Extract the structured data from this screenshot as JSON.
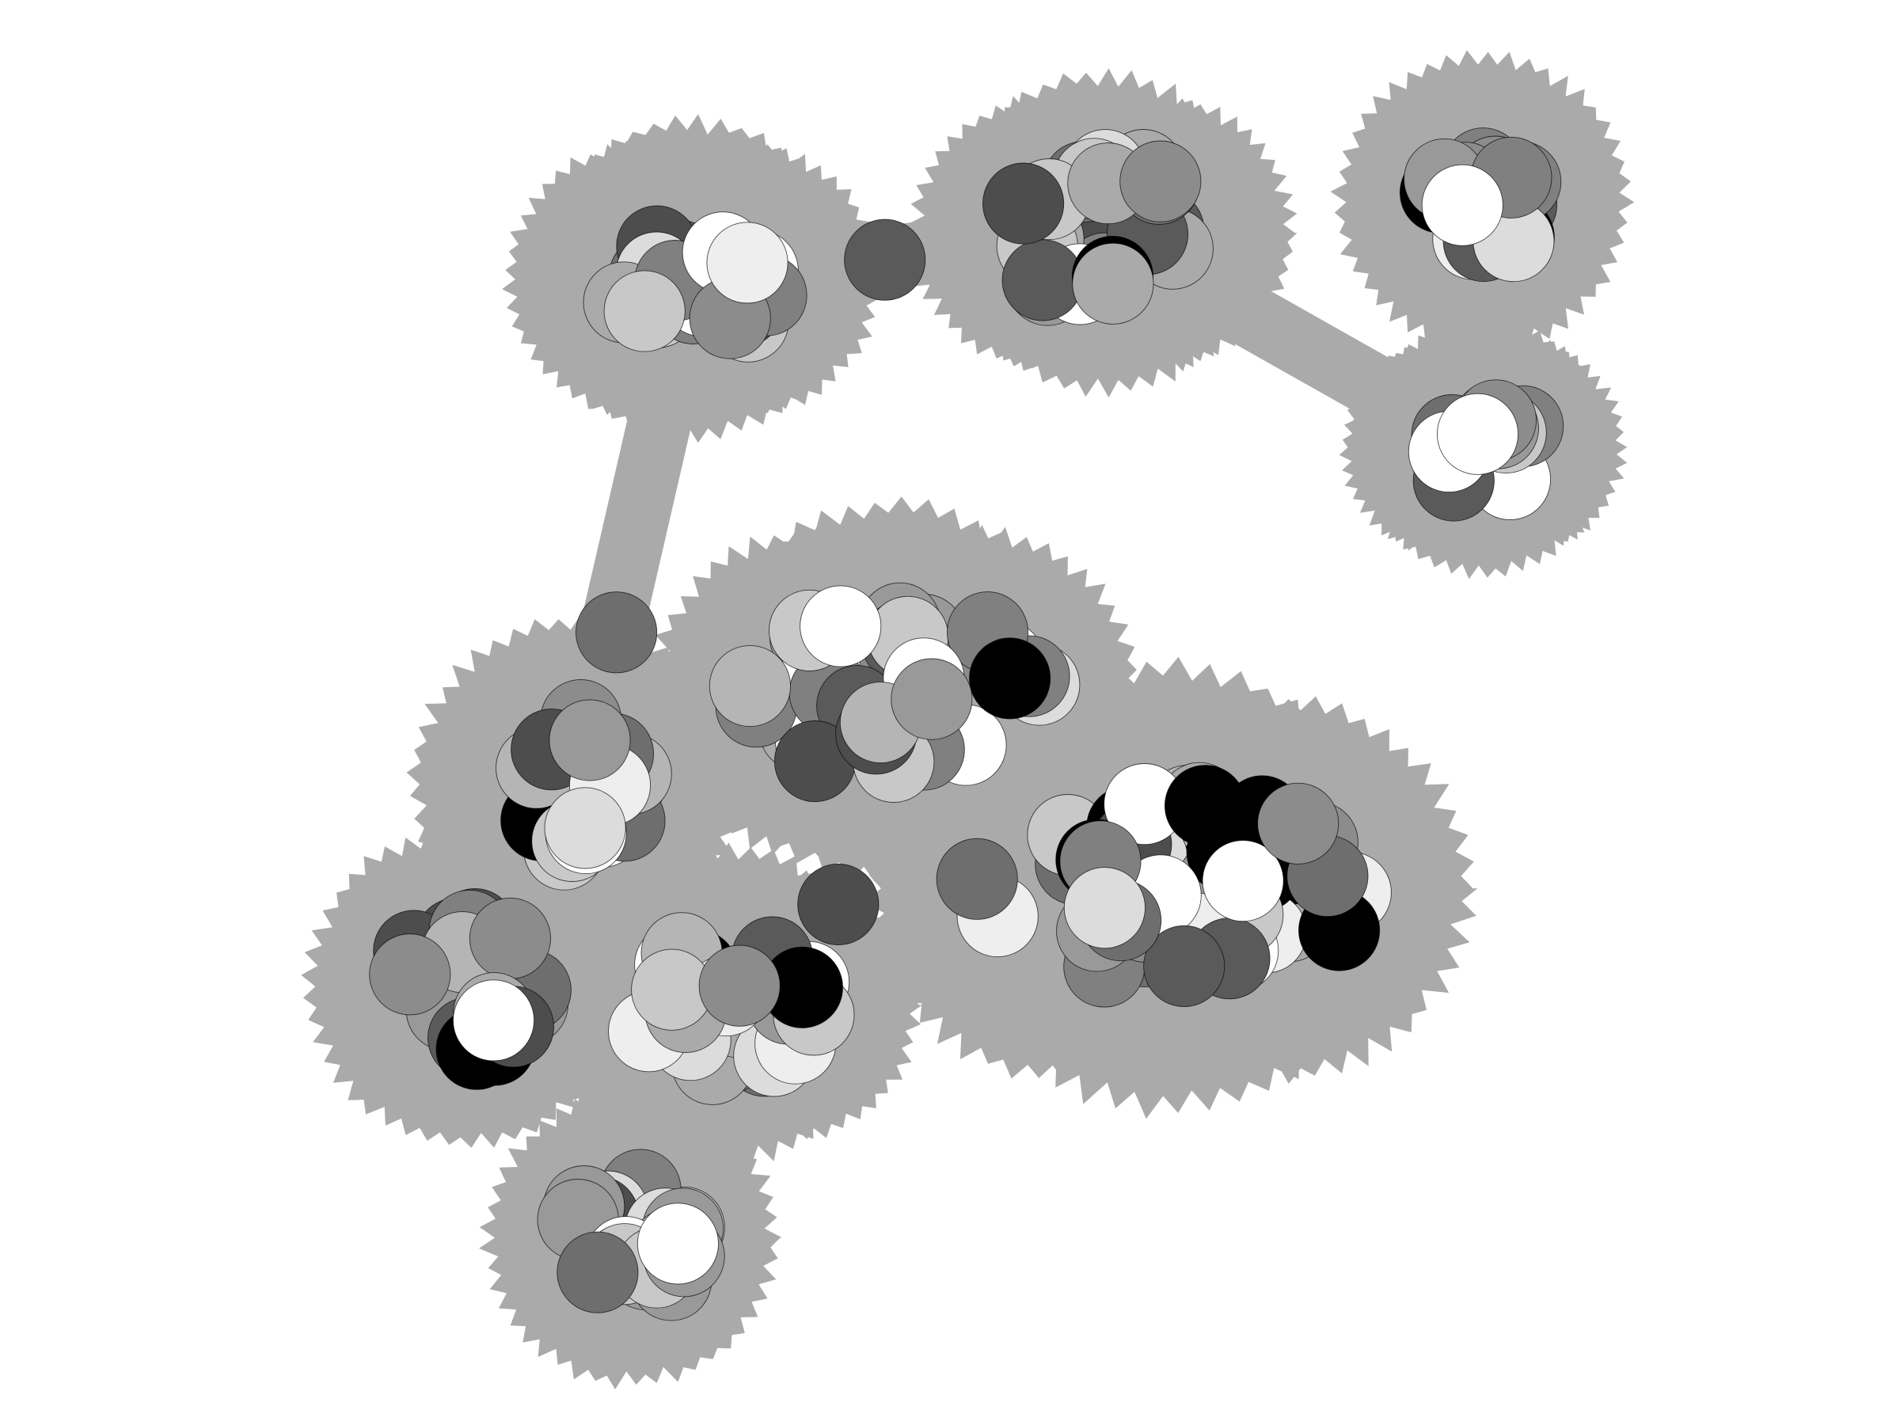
{
  "diagram": {
    "type": "network-bubble-plot",
    "background": "#ffffff",
    "hull_fill": "#aaaaaa",
    "node_stroke": "#000000",
    "grey_palette": [
      "#000000",
      "#4d4d4d",
      "#5a5a5a",
      "#6e6e6e",
      "#808080",
      "#8c8c8c",
      "#999999",
      "#aaaaaa",
      "#b5b5b5",
      "#c8c8c8",
      "#dcdcdc",
      "#eeeeee",
      "#ffffff"
    ],
    "clusters": [
      {
        "id": "cluster-top-left",
        "node_count": 26
      },
      {
        "id": "cluster-top-middle",
        "node_count": 22
      },
      {
        "id": "cluster-top-right",
        "node_count": 18
      },
      {
        "id": "cluster-right-lower",
        "node_count": 12
      },
      {
        "id": "cluster-middle-left",
        "node_count": 16
      },
      {
        "id": "cluster-center",
        "node_count": 34
      },
      {
        "id": "cluster-center-right",
        "node_count": 50
      },
      {
        "id": "cluster-bottom-left",
        "node_count": 22
      },
      {
        "id": "cluster-bottom-middle",
        "node_count": 22
      },
      {
        "id": "cluster-bottom",
        "node_count": 22
      }
    ],
    "bridges": [
      [
        "cluster-top-left",
        "cluster-top-middle"
      ],
      [
        "cluster-top-middle",
        "cluster-right-lower"
      ],
      [
        "cluster-right-lower",
        "cluster-top-right"
      ],
      [
        "cluster-top-left",
        "cluster-middle-left"
      ]
    ]
  }
}
